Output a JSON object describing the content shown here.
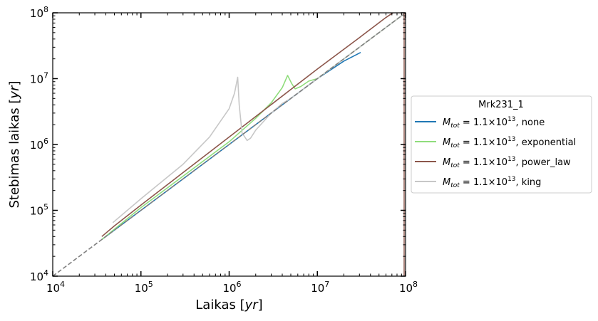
{
  "chart_data": {
    "type": "line",
    "xlabel": {
      "base": "Laikas ",
      "unit": "yr"
    },
    "ylabel": {
      "base": "Stebimas laikas ",
      "unit": "yr"
    },
    "xscale": "log",
    "yscale": "log",
    "xlim": [
      10000,
      100000000
    ],
    "ylim": [
      10000,
      100000000
    ],
    "x_ticks": [
      10000,
      100000,
      1000000,
      10000000,
      100000000
    ],
    "y_ticks": [
      10000,
      100000,
      1000000,
      10000000,
      100000000
    ],
    "tick_base": "10",
    "tick_exponents": [
      "4",
      "5",
      "6",
      "7",
      "8"
    ],
    "grid": false,
    "legend": {
      "placement": "outside-right",
      "title": "Mrk231_1",
      "mass_symbol": "M",
      "mass_subscript": "tot",
      "mass_value": "= 1.1×10",
      "mass_exponent": "13"
    },
    "series": [
      {
        "name": "none",
        "color": "#1f77b4",
        "x": [
          36000,
          100000,
          1000000,
          10000000,
          20000000,
          31000000
        ],
        "y": [
          36000,
          100000,
          1000000,
          10000000,
          18500000,
          25000000
        ]
      },
      {
        "name": "exponential",
        "color": "#90dd7c",
        "x": [
          36000,
          100000,
          1000000,
          2000000,
          3000000,
          4000000,
          4600000,
          5100000,
          5600000,
          6500000,
          8000000,
          10000000,
          20000000,
          50000000,
          100000000
        ],
        "y": [
          36000,
          110000,
          1100000,
          2500000,
          4300000,
          7300000,
          11200000,
          8500000,
          7000000,
          7600000,
          9200000,
          10000000,
          20000000,
          50000000,
          100000000
        ]
      },
      {
        "name": "power_law",
        "color": "#8c564b",
        "x": [
          36000,
          50000,
          100000,
          1000000,
          10000000,
          30000000,
          60000000,
          80000000
        ],
        "y": [
          40000,
          58000,
          120000,
          1300000,
          14000000,
          42000000,
          85000000,
          110000000
        ]
      },
      {
        "name": "king",
        "color": "#c7c7c7",
        "x": [
          48000,
          100000,
          300000,
          600000,
          1000000,
          1150000,
          1250000,
          1300000,
          1400000,
          1600000,
          1750000,
          2000000,
          3000000,
          4000000,
          5000000,
          10000000,
          50000000,
          100000000
        ],
        "y": [
          65000,
          150000,
          500000,
          1300000,
          3500000,
          6000000,
          10500000,
          4000000,
          1500000,
          1150000,
          1250000,
          1650000,
          3000000,
          4200000,
          5000000,
          10000000,
          50000000,
          100000000
        ]
      },
      {
        "name": "",
        "color": "#808080",
        "dashed": true,
        "x": [
          10000,
          100000000
        ],
        "y": [
          10000,
          100000000
        ]
      }
    ]
  }
}
